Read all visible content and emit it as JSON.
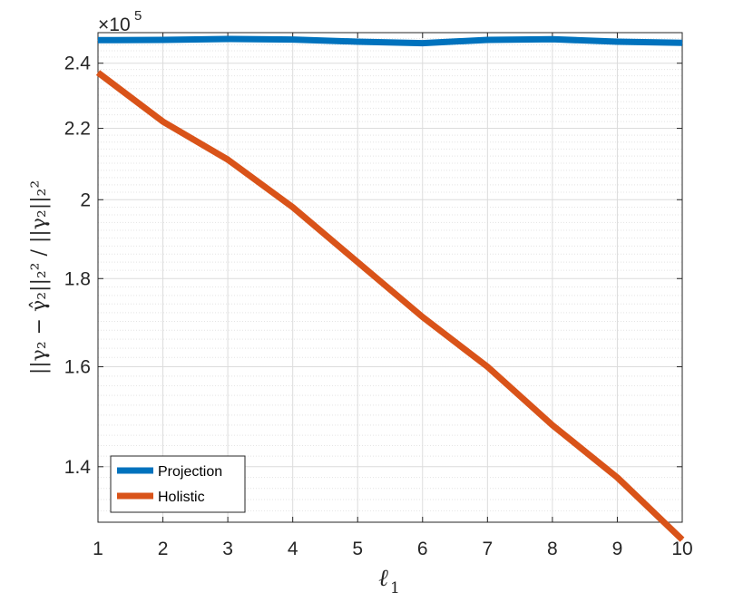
{
  "chart_data": {
    "type": "line",
    "scale": "log-y",
    "exponent_label": {
      "base": "×10",
      "power": "5"
    },
    "x": [
      1,
      2,
      3,
      4,
      5,
      6,
      7,
      8,
      9,
      10
    ],
    "xlim": [
      1,
      10
    ],
    "ylim": [
      1.3,
      2.5
    ],
    "x_ticks": [
      "1",
      "2",
      "3",
      "4",
      "5",
      "6",
      "7",
      "8",
      "9",
      "10"
    ],
    "y_ticks": [
      {
        "value": 1.4,
        "label": "1.4"
      },
      {
        "value": 1.6,
        "label": "1.6"
      },
      {
        "value": 1.8,
        "label": "1.8"
      },
      {
        "value": 2.0,
        "label": "2"
      },
      {
        "value": 2.2,
        "label": "2.2"
      },
      {
        "value": 2.4,
        "label": "2.4"
      }
    ],
    "xlabel": {
      "base": "ℓ",
      "sub": "1"
    },
    "ylabel": "||γ₂ − γ̂₂||₂² / ||γ₂||₂²",
    "grid": true,
    "legend_position": "bottom-left",
    "series": [
      {
        "name": "Projection",
        "color": "#0072bd",
        "values": [
          2.475,
          2.476,
          2.479,
          2.477,
          2.47,
          2.465,
          2.476,
          2.478,
          2.47,
          2.466
        ]
      },
      {
        "name": "Holistic",
        "color": "#d95319",
        "values": [
          2.37,
          2.22,
          2.11,
          1.98,
          1.84,
          1.71,
          1.6,
          1.48,
          1.38,
          1.27
        ]
      }
    ]
  }
}
